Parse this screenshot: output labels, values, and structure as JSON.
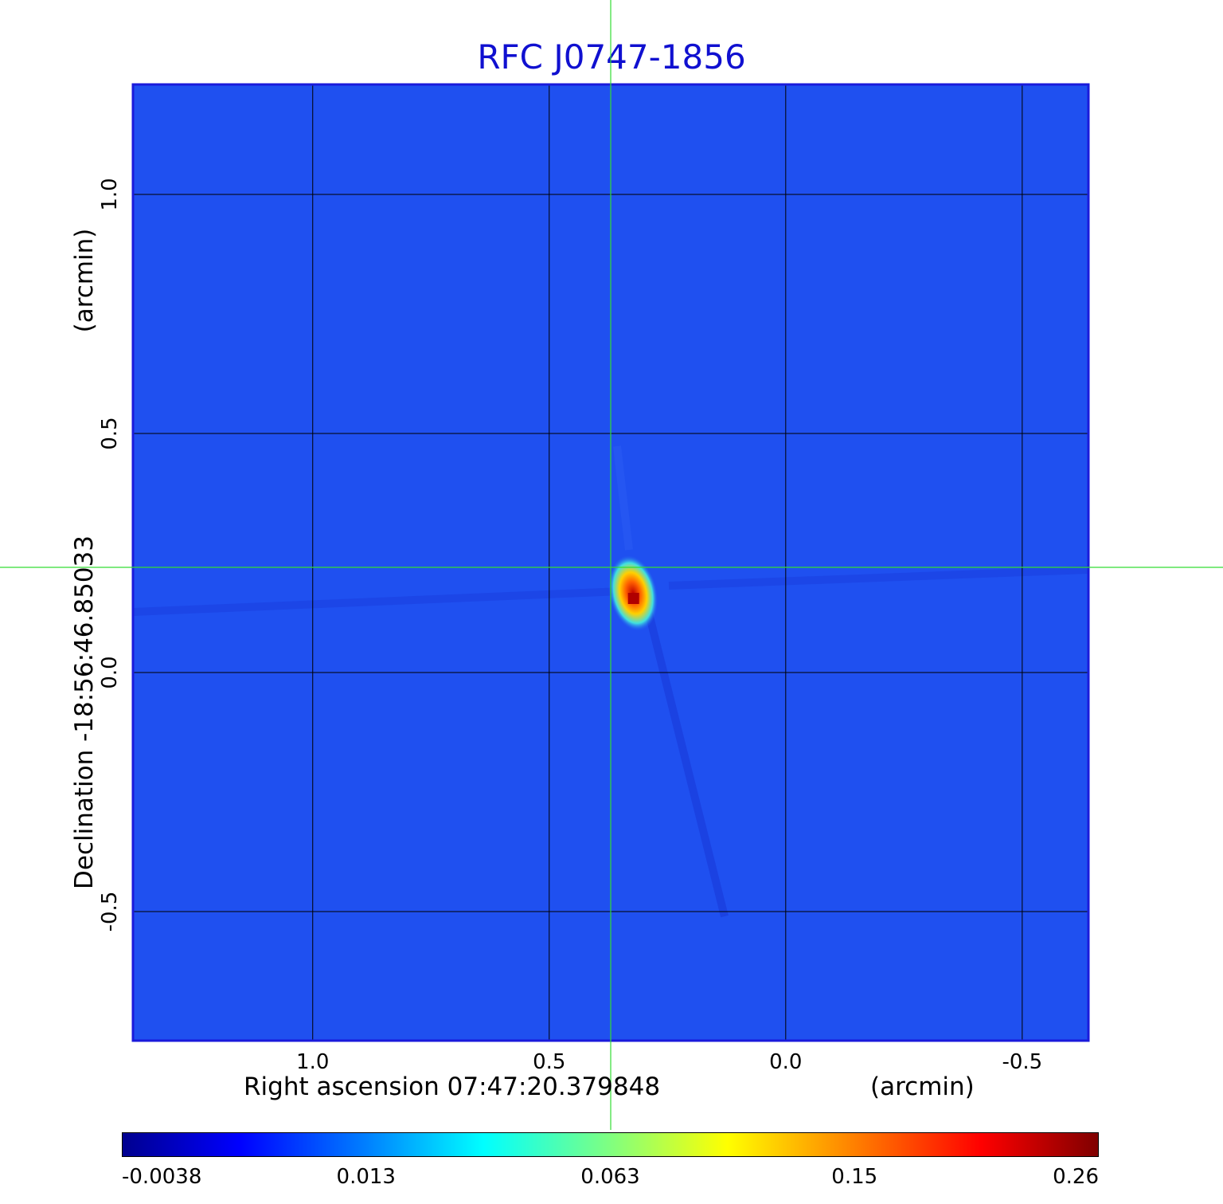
{
  "chart_data": {
    "type": "heatmap",
    "title": "RFC J0747-1856",
    "xlabel": "Right ascension  07:47:20.379848",
    "x_unit": "(arcmin)",
    "ylabel": "Declination  -18:56:46.85033",
    "y_unit": "(arcmin)",
    "x_ticks": [
      "1.0",
      "0.5",
      "0.0",
      "-0.5"
    ],
    "y_ticks": [
      "1.0",
      "0.5",
      "0.0",
      "-0.5"
    ],
    "x_range_arcmin": [
      1.38,
      -0.64
    ],
    "y_range_arcmin": [
      -0.77,
      1.23
    ],
    "grid": true,
    "crosshair_arcmin": {
      "x": 0.37,
      "y": 0.22
    },
    "colorbar": {
      "colormap": "jet",
      "ticks": [
        "-0.0038",
        "0.013",
        "0.063",
        "0.15",
        "0.26"
      ],
      "min": -0.0038,
      "max": 0.26
    },
    "source_peak": {
      "x_arcmin": 0.32,
      "y_arcmin": 0.17,
      "value": 0.26
    }
  },
  "colors": {
    "title": "#1010d0",
    "background_map": "#1f50f0",
    "crosshair": "#33dd33",
    "grid": "#000000"
  }
}
